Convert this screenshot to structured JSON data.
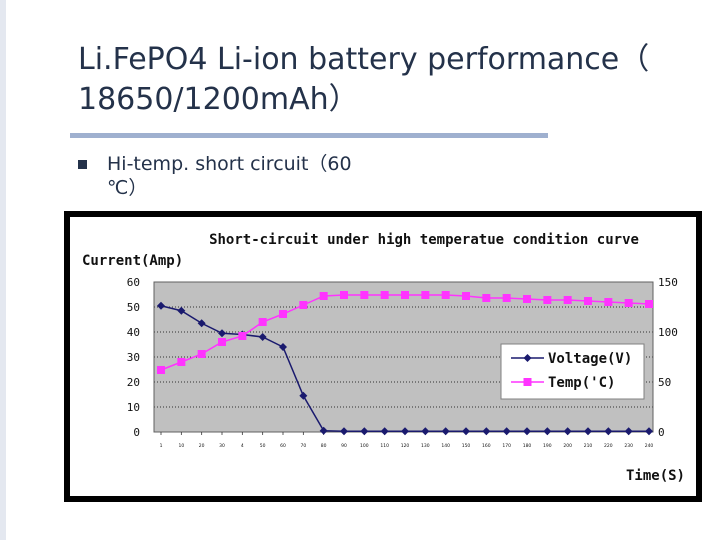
{
  "slide": {
    "title_line1": "Li.FePO4 Li-ion battery performance（",
    "title_line2": "18650/1200mAh）",
    "bullet_line1": "Hi-temp. short circuit（60",
    "bullet_line2": "℃）"
  },
  "colors": {
    "plot_bg": "#c0c0c0",
    "voltage": "#1a1a6e",
    "temp": "#ff33ff",
    "accent_rule": "#9fb0cf",
    "title_text": "#24324a"
  },
  "chart_data": {
    "type": "line",
    "title": "Short-circuit under high temperatue condition curve",
    "ylabel": "Current(Amp)",
    "xlabel": "Time(S)",
    "ylim": [
      0,
      60
    ],
    "y2lim": [
      0,
      150
    ],
    "yticks": [
      "0",
      "10",
      "20",
      "30",
      "40",
      "50",
      "60"
    ],
    "y2ticks": [
      "0",
      "50",
      "100",
      "150"
    ],
    "x": [
      "1",
      "10",
      "20",
      "30",
      "4",
      "50",
      "60",
      "70",
      "80",
      "90",
      "100",
      "110",
      "120",
      "130",
      "140",
      "150",
      "160",
      "170",
      "180",
      "190",
      "200",
      "210",
      "220",
      "230",
      "240"
    ],
    "legend_position": "center-right",
    "grid": true,
    "series": [
      {
        "name": "Voltage(V)",
        "axis": "left",
        "marker": "diamond",
        "values": [
          50.5,
          48.5,
          43.5,
          39.5,
          39,
          38,
          34,
          14.5,
          0.5,
          0.3,
          0.3,
          0.3,
          0.3,
          0.3,
          0.3,
          0.3,
          0.3,
          0.3,
          0.3,
          0.3,
          0.3,
          0.3,
          0.3,
          0.3,
          0.3
        ]
      },
      {
        "name": "Temp('C)",
        "axis": "right",
        "marker": "square",
        "values": [
          62,
          70,
          78,
          90,
          96,
          110,
          118,
          127,
          136,
          137,
          137,
          137,
          137,
          137,
          137,
          136,
          134,
          134,
          133,
          132,
          132,
          131,
          130,
          129,
          128
        ]
      }
    ]
  }
}
